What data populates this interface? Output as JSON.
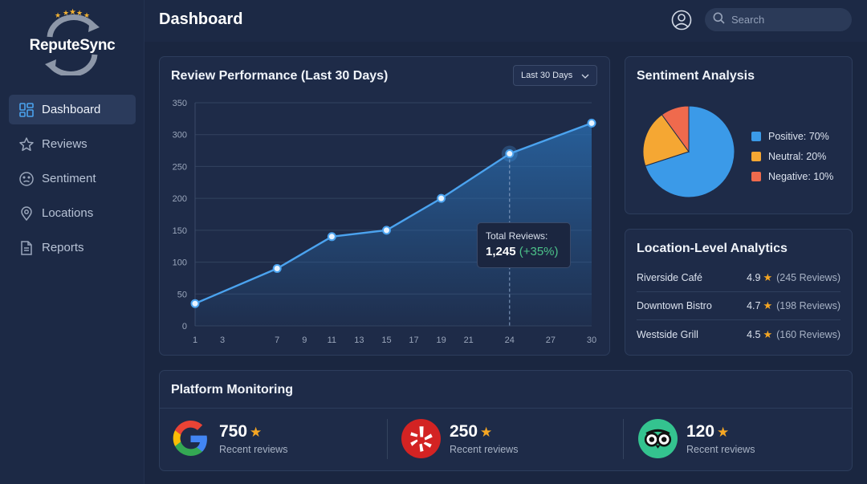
{
  "app": {
    "name": "ReputeSync"
  },
  "sidebar": {
    "items": [
      {
        "label": "Dashboard",
        "icon": "dashboard-grid-icon",
        "active": true
      },
      {
        "label": "Reviews",
        "icon": "star-outline-icon"
      },
      {
        "label": "Sentiment",
        "icon": "face-neutral-icon"
      },
      {
        "label": "Locations",
        "icon": "map-pin-icon"
      },
      {
        "label": "Reports",
        "icon": "document-icon"
      }
    ]
  },
  "header": {
    "title": "Dashboard",
    "search_placeholder": "Search"
  },
  "review_performance": {
    "title": "Review Performance (Last 30 Days)",
    "range_select": "Last 30 Days",
    "tooltip": {
      "label": "Total Reviews:",
      "value": "1,245",
      "change": "(+35%)"
    }
  },
  "chart_data": {
    "type": "area",
    "x_ticks": [
      1,
      3,
      7,
      9,
      11,
      13,
      15,
      17,
      19,
      21,
      24,
      27,
      30
    ],
    "y_ticks": [
      0,
      50,
      100,
      150,
      200,
      250,
      300,
      350
    ],
    "ylim": [
      0,
      350
    ],
    "series": [
      {
        "values": [
          [
            1,
            35
          ],
          [
            7,
            90
          ],
          [
            11,
            140
          ],
          [
            15,
            150
          ],
          [
            19,
            200
          ],
          [
            24,
            270
          ],
          [
            30,
            318
          ]
        ]
      }
    ],
    "highlight_x": 24,
    "grid": true,
    "colors": {
      "line": "#4ba3ef",
      "fill": "#2a6fb3"
    }
  },
  "sentiment": {
    "title": "Sentiment Analysis",
    "slices": [
      {
        "label": "Positive: 70%",
        "value": 70,
        "color": "#3b9ae8"
      },
      {
        "label": "Neutral: 20%",
        "value": 20,
        "color": "#f5a733"
      },
      {
        "label": "Negative: 10%",
        "value": 10,
        "color": "#ef6a4d"
      }
    ]
  },
  "locations": {
    "title": "Location-Level Analytics",
    "rows": [
      {
        "name": "Riverside Café",
        "rating": "4.9",
        "reviews": "(245 Reviews)"
      },
      {
        "name": "Downtown Bistro",
        "rating": "4.7",
        "reviews": "(198 Reviews)"
      },
      {
        "name": "Westside Grill",
        "rating": "4.5",
        "reviews": "(160 Reviews)"
      }
    ]
  },
  "platforms": {
    "title": "Platform Monitoring",
    "items": [
      {
        "name": "google",
        "icon": "google-logo-icon",
        "count": "750",
        "label": "Recent reviews"
      },
      {
        "name": "yelp",
        "icon": "yelp-logo-icon",
        "count": "250",
        "label": "Recent reviews"
      },
      {
        "name": "tripadvisor",
        "icon": "tripadvisor-logo-icon",
        "count": "120",
        "label": "Recent reviews"
      }
    ]
  }
}
